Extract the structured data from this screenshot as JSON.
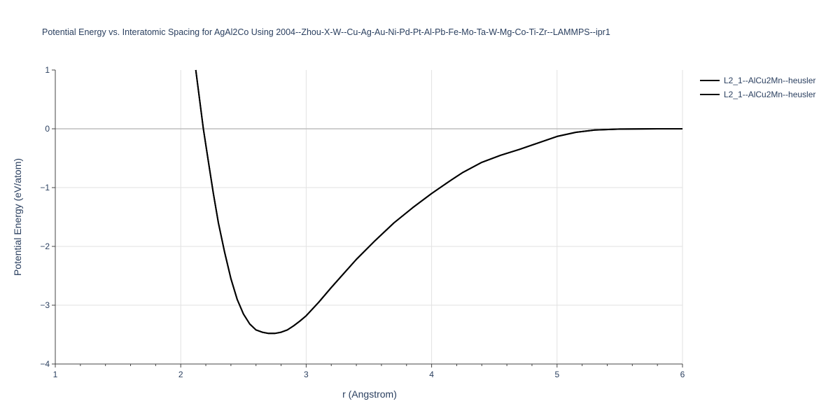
{
  "chart_data": {
    "type": "line",
    "title": "Potential Energy vs. Interatomic Spacing for AgAl2Co Using 2004--Zhou-X-W--Cu-Ag-Au-Ni-Pd-Pt-Al-Pb-Fe-Mo-Ta-W-Mg-Co-Ti-Zr--LAMMPS--ipr1",
    "xlabel": "r (Angstrom)",
    "ylabel": "Potential Energy (eV/atom)",
    "xlim": [
      1,
      6
    ],
    "ylim": [
      -4,
      1
    ],
    "x_ticks": [
      1,
      2,
      3,
      4,
      5,
      6
    ],
    "y_ticks": [
      1,
      0,
      -1,
      -2,
      -3,
      -4
    ],
    "grid": true,
    "legend_position": "top-right",
    "series": [
      {
        "name": "L2_1--AlCu2Mn--heusler",
        "color": "#000000",
        "x": [
          2.12,
          2.15,
          2.18,
          2.22,
          2.26,
          2.3,
          2.35,
          2.4,
          2.45,
          2.5,
          2.55,
          2.6,
          2.65,
          2.7,
          2.75,
          2.8,
          2.85,
          2.9,
          2.95,
          3.0,
          3.1,
          3.2,
          3.3,
          3.4,
          3.55,
          3.7,
          3.85,
          4.0,
          4.15,
          4.25,
          4.4,
          4.55,
          4.7,
          4.85,
          5.0,
          5.15,
          5.3,
          5.5,
          5.8,
          6.0
        ],
        "y": [
          1.0,
          0.5,
          0.0,
          -0.55,
          -1.1,
          -1.6,
          -2.1,
          -2.55,
          -2.9,
          -3.15,
          -3.32,
          -3.42,
          -3.46,
          -3.48,
          -3.48,
          -3.46,
          -3.42,
          -3.35,
          -3.27,
          -3.18,
          -2.95,
          -2.7,
          -2.46,
          -2.22,
          -1.9,
          -1.6,
          -1.34,
          -1.1,
          -0.88,
          -0.74,
          -0.57,
          -0.45,
          -0.35,
          -0.24,
          -0.13,
          -0.06,
          -0.02,
          -0.005,
          0.0,
          0.0
        ]
      },
      {
        "name": "L2_1--AlCu2Mn--heusler",
        "color": "#000000",
        "x": [
          2.12,
          2.15,
          2.18,
          2.22,
          2.26,
          2.3,
          2.35,
          2.4,
          2.45,
          2.5,
          2.55,
          2.6,
          2.65,
          2.7,
          2.75,
          2.8,
          2.85,
          2.9,
          2.95,
          3.0,
          3.1,
          3.2,
          3.3,
          3.4,
          3.55,
          3.7,
          3.85,
          4.0,
          4.15,
          4.25,
          4.4,
          4.55,
          4.7,
          4.85,
          5.0,
          5.15,
          5.3,
          5.5,
          5.8,
          6.0
        ],
        "y": [
          1.0,
          0.5,
          0.0,
          -0.55,
          -1.1,
          -1.6,
          -2.1,
          -2.55,
          -2.9,
          -3.15,
          -3.32,
          -3.42,
          -3.46,
          -3.48,
          -3.48,
          -3.46,
          -3.42,
          -3.35,
          -3.27,
          -3.18,
          -2.95,
          -2.7,
          -2.46,
          -2.22,
          -1.9,
          -1.6,
          -1.34,
          -1.1,
          -0.88,
          -0.74,
          -0.57,
          -0.45,
          -0.35,
          -0.24,
          -0.13,
          -0.06,
          -0.02,
          -0.005,
          0.0,
          0.0
        ]
      }
    ]
  }
}
